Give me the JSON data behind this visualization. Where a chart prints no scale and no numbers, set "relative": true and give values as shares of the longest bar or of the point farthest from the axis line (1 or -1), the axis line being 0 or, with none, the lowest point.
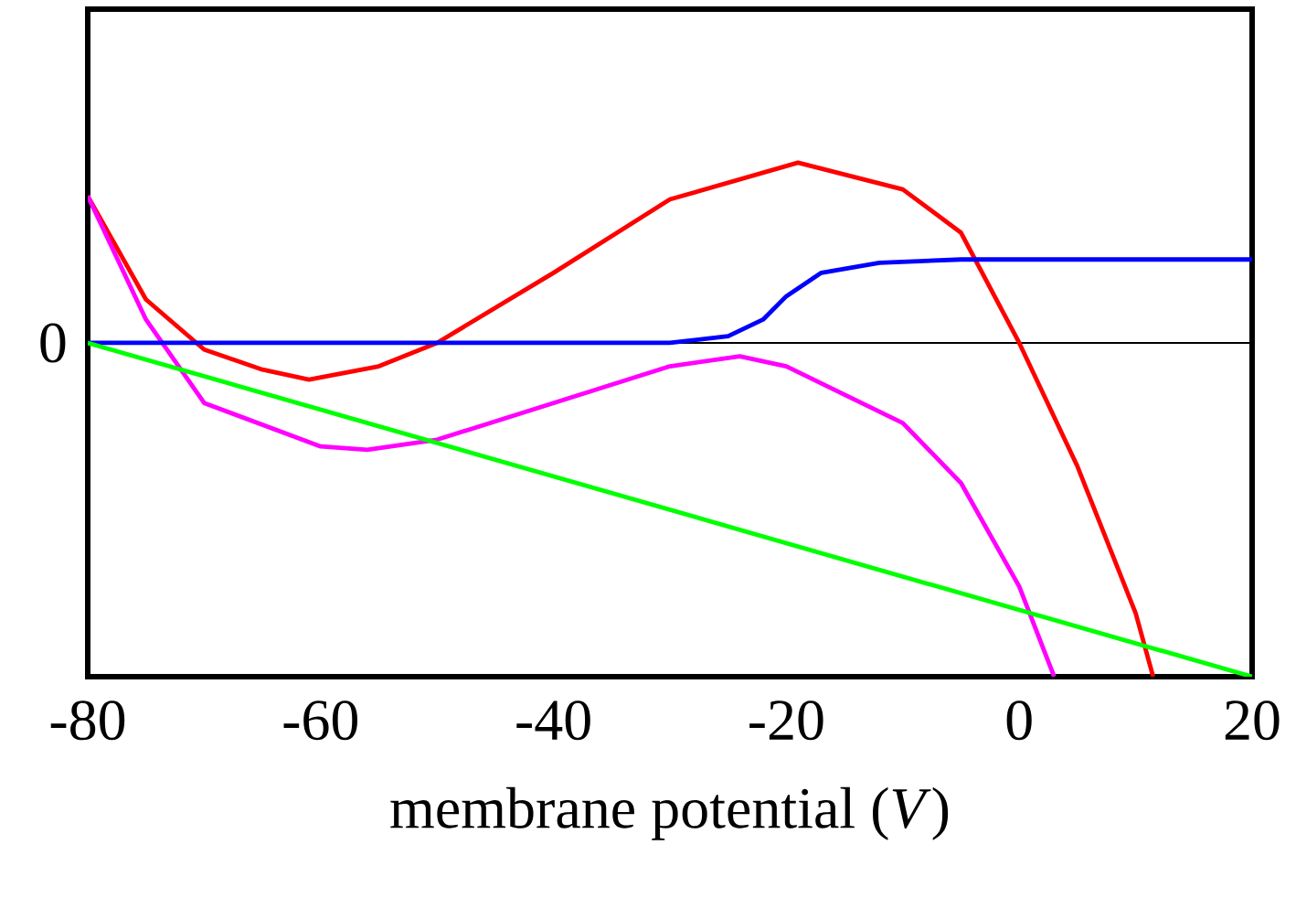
{
  "chart_data": {
    "type": "line",
    "relative": true,
    "xlabel": "membrane potential (*V*)",
    "xlim": [
      -80,
      20
    ],
    "xticks": [
      -80,
      -60,
      -40,
      -20,
      0,
      20
    ],
    "grid": false,
    "marker": "none",
    "line_style": "solid",
    "ref_lines": [
      {
        "axis": "y",
        "value": 0,
        "label": "0",
        "color": "#000000"
      }
    ],
    "series": [
      {
        "color": "#ff0000",
        "x": [
          -80,
          -75,
          -70,
          -65,
          -61,
          -55,
          -50,
          -40,
          -30,
          -19,
          -10,
          -5,
          0,
          5,
          10,
          11.5
        ],
        "values": [
          0.44,
          0.13,
          -0.02,
          -0.08,
          -0.11,
          -0.07,
          0,
          0.21,
          0.43,
          0.54,
          0.46,
          0.33,
          0,
          -0.37,
          -0.81,
          -1
        ]
      },
      {
        "color": "#ff00ff",
        "x": [
          -80,
          -75,
          -70,
          -60,
          -56,
          -50,
          -40,
          -30,
          -24,
          -20,
          -10,
          -5,
          0,
          3
        ],
        "values": [
          0.44,
          0.07,
          -0.18,
          -0.31,
          -0.32,
          -0.29,
          -0.18,
          -0.07,
          -0.04,
          -0.07,
          -0.24,
          -0.42,
          -0.73,
          -1
        ]
      },
      {
        "color": "#0000ff",
        "x": [
          -80,
          -30,
          -25,
          -22,
          -20,
          -17,
          -12,
          -5,
          20
        ],
        "values": [
          0,
          0,
          0.02,
          0.07,
          0.14,
          0.21,
          0.24,
          0.25,
          0.25
        ]
      },
      {
        "color": "#00ff00",
        "x": [
          -80,
          20
        ],
        "values": [
          0,
          -1
        ]
      }
    ]
  }
}
